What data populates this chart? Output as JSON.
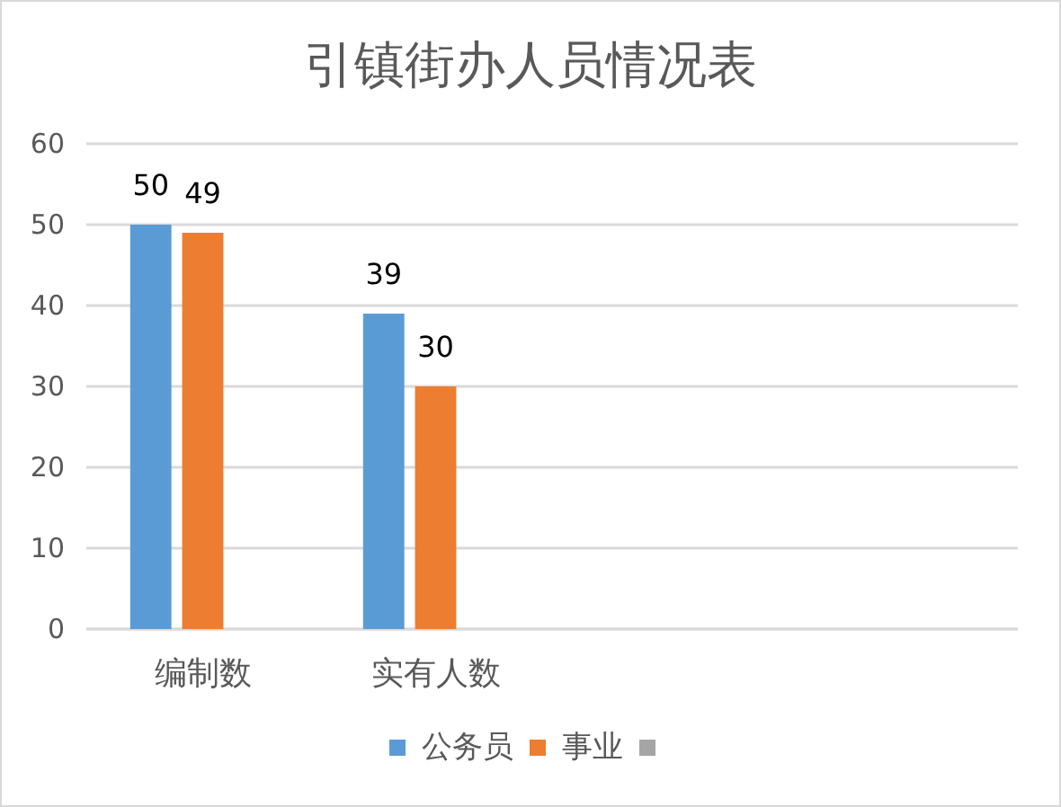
{
  "chart_data": {
    "type": "bar",
    "title": "引镇街办人员情况表",
    "categories": [
      "编制数",
      "实有人数",
      null,
      null
    ],
    "series": [
      {
        "name": "公务员",
        "color": "#5b9bd5",
        "values": [
          50,
          39,
          null,
          null
        ]
      },
      {
        "name": "事业",
        "color": "#ed7d31",
        "values": [
          49,
          30,
          null,
          null
        ]
      },
      {
        "color": "#a5a5a5",
        "values": [
          null,
          null,
          null,
          null
        ]
      }
    ],
    "ylim": [
      0,
      60
    ],
    "yticks": [
      0,
      10,
      20,
      30,
      40,
      50,
      60
    ],
    "grid": "y",
    "legend": "bottom",
    "data_labels": true
  }
}
